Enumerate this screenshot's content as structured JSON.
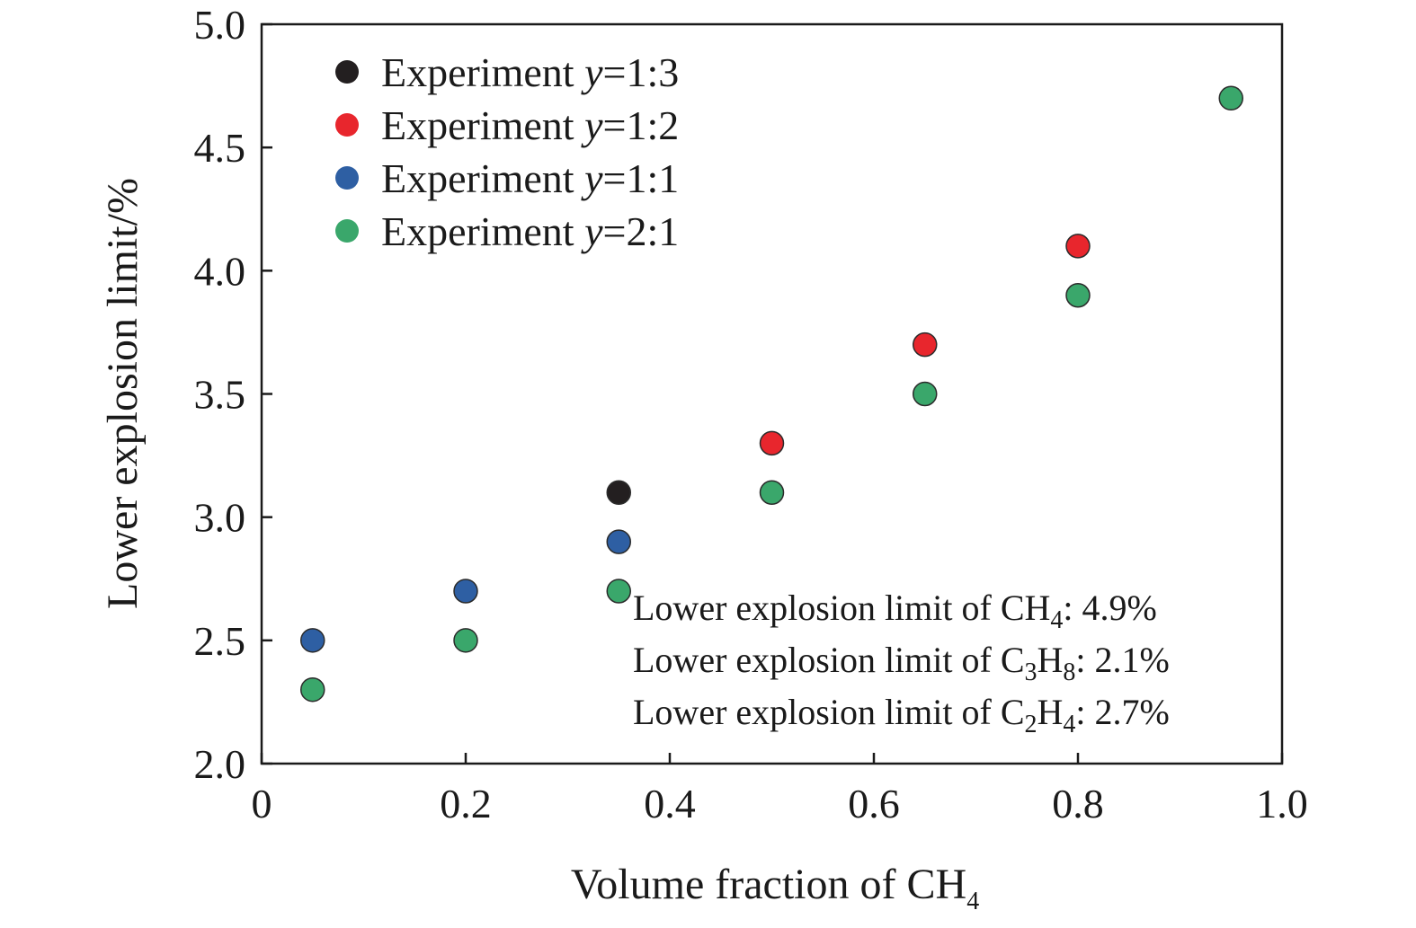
{
  "chart_data": {
    "type": "scatter",
    "title": "",
    "xlabel": {
      "prefix": "Volume fraction of CH",
      "sub": "4"
    },
    "ylabel": "Lower explosion limit/%",
    "xlim": [
      0,
      1.0
    ],
    "ylim": [
      2.0,
      5.0
    ],
    "x_ticks": [
      {
        "value": 0,
        "label": "0"
      },
      {
        "value": 0.2,
        "label": "0.2"
      },
      {
        "value": 0.4,
        "label": "0.4"
      },
      {
        "value": 0.6,
        "label": "0.6"
      },
      {
        "value": 0.8,
        "label": "0.8"
      },
      {
        "value": 1.0,
        "label": "1.0"
      }
    ],
    "y_ticks": [
      {
        "value": 2.0,
        "label": "2.0"
      },
      {
        "value": 2.5,
        "label": "2.5"
      },
      {
        "value": 3.0,
        "label": "3.0"
      },
      {
        "value": 3.5,
        "label": "3.5"
      },
      {
        "value": 4.0,
        "label": "4.0"
      },
      {
        "value": 4.5,
        "label": "4.5"
      },
      {
        "value": 5.0,
        "label": "5.0"
      }
    ],
    "grid": false,
    "legend_position": "top-left",
    "series": [
      {
        "name": "Experiment y=1:3",
        "label_prefix": "Experiment ",
        "label_var": "y",
        "label_ratio": "=1:3",
        "color": "#231f20",
        "points": [
          {
            "x": 0.35,
            "y": 3.1
          }
        ]
      },
      {
        "name": "Experiment y=1:2",
        "label_prefix": "Experiment ",
        "label_var": "y",
        "label_ratio": "=1:2",
        "color": "#e8262d",
        "points": [
          {
            "x": 0.5,
            "y": 3.3
          },
          {
            "x": 0.65,
            "y": 3.7
          },
          {
            "x": 0.8,
            "y": 4.1
          }
        ]
      },
      {
        "name": "Experiment y=1:1",
        "label_prefix": "Experiment ",
        "label_var": "y",
        "label_ratio": "=1:1",
        "color": "#2e5fa3",
        "points": [
          {
            "x": 0.05,
            "y": 2.5
          },
          {
            "x": 0.2,
            "y": 2.7
          },
          {
            "x": 0.35,
            "y": 2.9
          }
        ]
      },
      {
        "name": "Experiment y=2:1",
        "label_prefix": "Experiment ",
        "label_var": "y",
        "label_ratio": "=2:1",
        "color": "#3aa76b",
        "points": [
          {
            "x": 0.05,
            "y": 2.3
          },
          {
            "x": 0.2,
            "y": 2.5
          },
          {
            "x": 0.35,
            "y": 2.7
          },
          {
            "x": 0.5,
            "y": 3.1
          },
          {
            "x": 0.65,
            "y": 3.5
          },
          {
            "x": 0.8,
            "y": 3.9
          },
          {
            "x": 0.95,
            "y": 4.7
          }
        ]
      }
    ],
    "annotations": [
      {
        "text": "Lower explosion limit of CH4: 4.9%",
        "parts": [
          {
            "t": "Lower explosion limit of CH"
          },
          {
            "t": "4",
            "sub": true
          },
          {
            "t": ": 4.9%"
          }
        ]
      },
      {
        "text": "Lower explosion limit of C3H8: 2.1%",
        "parts": [
          {
            "t": "Lower explosion limit of C"
          },
          {
            "t": "3",
            "sub": true
          },
          {
            "t": "H"
          },
          {
            "t": "8",
            "sub": true
          },
          {
            "t": ": 2.1%"
          }
        ]
      },
      {
        "text": "Lower explosion limit of C2H4: 2.7%",
        "parts": [
          {
            "t": "Lower explosion limit of C"
          },
          {
            "t": "2",
            "sub": true
          },
          {
            "t": "H"
          },
          {
            "t": "4",
            "sub": true
          },
          {
            "t": ": 2.7%"
          }
        ]
      }
    ]
  }
}
